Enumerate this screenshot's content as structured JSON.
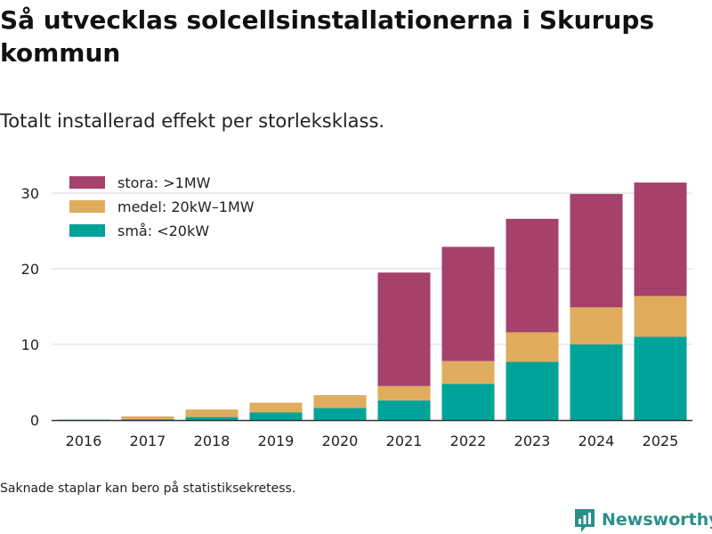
{
  "title": "Så utvecklas solcellsinstallationerna i Skurups kommun",
  "subtitle": "Totalt installerad effekt per storleksklass.",
  "note": "Saknade staplar kan bero på statistiksekretess.",
  "brand": {
    "name": "Newsworthy",
    "icon": "newsworthy-logo-icon",
    "color": "#2a8f8a"
  },
  "chart_data": {
    "type": "bar",
    "stacked": true,
    "categories": [
      "2016",
      "2017",
      "2018",
      "2019",
      "2020",
      "2021",
      "2022",
      "2023",
      "2024",
      "2025"
    ],
    "series": [
      {
        "name": "små: <20kW",
        "color": "#00a39a",
        "values": [
          0.05,
          0.1,
          0.4,
          1.0,
          1.6,
          2.6,
          4.8,
          7.7,
          10.0,
          11.0
        ]
      },
      {
        "name": "medel: 20kW–1MW",
        "color": "#dfad5d",
        "values": [
          0.0,
          0.4,
          1.0,
          1.3,
          1.7,
          1.9,
          3.0,
          3.9,
          4.9,
          5.4
        ]
      },
      {
        "name": "stora: >1MW",
        "color": "#a5416a",
        "values": [
          0.0,
          0.0,
          0.0,
          0.0,
          0.0,
          15.0,
          15.1,
          15.0,
          15.0,
          15.0
        ]
      }
    ],
    "legend_order": [
      "stora: >1MW",
      "medel: 20kW–1MW",
      "små: <20kW"
    ],
    "legend_position": "top-left",
    "yticks": [
      0,
      10,
      20,
      30
    ],
    "ylim": [
      0,
      32
    ],
    "xlabel": "",
    "ylabel": "",
    "grid": true
  }
}
